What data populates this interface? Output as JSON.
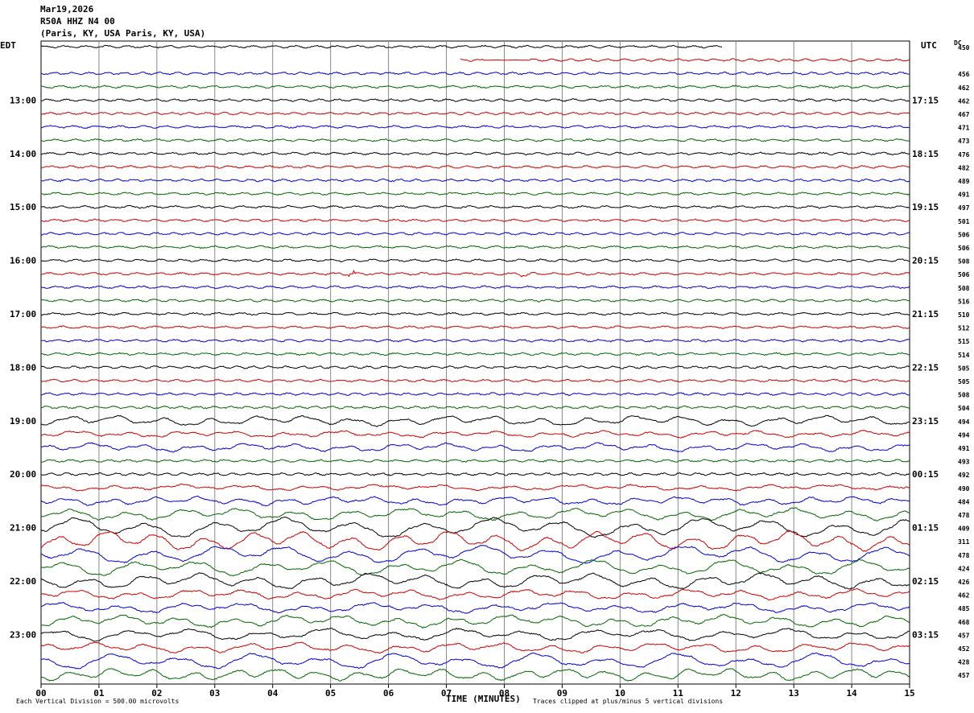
{
  "header": {
    "date": "Mar19,2026",
    "station": "R50A HHZ N4 00",
    "location": "(Paris, KY, USA Paris, KY, USA)"
  },
  "left_tz": "EDT",
  "right_tz": "UTC",
  "dc_label": "DC",
  "footer": {
    "scale": "Each Vertical Division =  500.00 microvolts",
    "xlabel": "TIME (MINUTES)",
    "clip_note": "Traces clipped at plus/minus 5 vertical divisions"
  },
  "colors": {
    "cycle": [
      "#000000",
      "#cc0000",
      "#0000cc",
      "#006600"
    ],
    "grid": "#888888"
  },
  "chart_data": {
    "type": "line",
    "title": "",
    "xlabel": "TIME (MINUTES)",
    "x_ticks": [
      "00",
      "01",
      "02",
      "03",
      "04",
      "05",
      "06",
      "07",
      "08",
      "09",
      "10",
      "11",
      "12",
      "13",
      "14",
      "15"
    ],
    "xlim": [
      0,
      15
    ],
    "left_hour_labels": [
      "13:00",
      "14:00",
      "15:00",
      "16:00",
      "17:00",
      "18:00",
      "19:00",
      "20:00",
      "21:00",
      "22:00",
      "23:00"
    ],
    "right_hour_labels": [
      "17:15",
      "18:15",
      "19:15",
      "20:15",
      "21:15",
      "22:15",
      "23:15",
      "00:15",
      "01:15",
      "02:15",
      "03:15"
    ],
    "dc_offsets": [
      450,
      null,
      456,
      462,
      462,
      467,
      471,
      473,
      476,
      482,
      489,
      491,
      497,
      501,
      506,
      506,
      508,
      506,
      508,
      516,
      510,
      512,
      515,
      514,
      505,
      505,
      508,
      504,
      494,
      494,
      491,
      493,
      492,
      490,
      484,
      478,
      409,
      311,
      478,
      424,
      426,
      462,
      485,
      468,
      457,
      452,
      428,
      457
    ],
    "trace_amplitude": [
      1,
      1,
      1,
      1,
      1,
      1,
      1,
      1,
      1,
      1,
      1,
      1,
      1,
      1,
      1,
      1,
      1,
      1,
      1,
      1,
      1,
      1,
      1,
      1,
      1,
      1,
      1,
      1,
      2.5,
      1.5,
      2,
      1.2,
      1.2,
      1.3,
      2,
      3,
      5,
      5,
      4.5,
      4,
      4,
      2.5,
      2.5,
      3,
      3,
      2.5,
      4,
      3
    ]
  }
}
